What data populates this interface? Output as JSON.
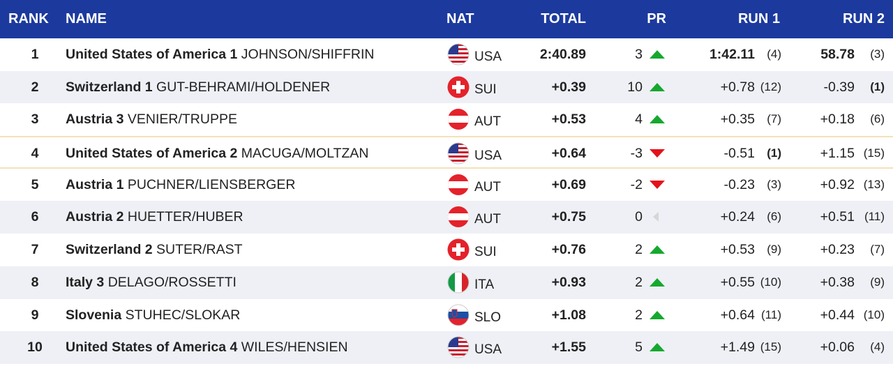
{
  "header": {
    "columns": [
      "RANK",
      "NAME",
      "NAT",
      "TOTAL",
      "PR",
      "RUN 1",
      "RUN 2"
    ]
  },
  "table": {
    "rows": [
      {
        "rank": 1,
        "team": "United States of America 1",
        "athletes": "JOHNSON/SHIFFRIN",
        "nat": "USA",
        "total": "2:40.89",
        "pr": 3,
        "run1": "1:42.11",
        "run1_rank": "(4)",
        "run2": "58.78",
        "run2_rank": "(3)"
      },
      {
        "rank": 2,
        "team": "Switzerland 1",
        "athletes": "GUT-BEHRAMI/HOLDENER",
        "nat": "SUI",
        "total": "+0.39",
        "pr": 10,
        "run1": "+0.78",
        "run1_rank": "(12)",
        "run2": "-0.39",
        "run2_rank": "(1)"
      },
      {
        "rank": 3,
        "team": "Austria 3",
        "athletes": "VENIER/TRUPPE",
        "nat": "AUT",
        "total": "+0.53",
        "pr": 4,
        "run1": "+0.35",
        "run1_rank": "(7)",
        "run2": "+0.18",
        "run2_rank": "(6)"
      },
      {
        "rank": 4,
        "team": "United States of America 2",
        "athletes": "MACUGA/MOLTZAN",
        "nat": "USA",
        "total": "+0.64",
        "pr": -3,
        "run1": "-0.51",
        "run1_rank": "(1)",
        "run2": "+1.15",
        "run2_rank": "(15)"
      },
      {
        "rank": 5,
        "team": "Austria 1",
        "athletes": "PUCHNER/LIENSBERGER",
        "nat": "AUT",
        "total": "+0.69",
        "pr": -2,
        "run1": "-0.23",
        "run1_rank": "(3)",
        "run2": "+0.92",
        "run2_rank": "(13)"
      },
      {
        "rank": 6,
        "team": "Austria 2",
        "athletes": "HUETTER/HUBER",
        "nat": "AUT",
        "total": "+0.75",
        "pr": 0,
        "run1": "+0.24",
        "run1_rank": "(6)",
        "run2": "+0.51",
        "run2_rank": "(11)"
      },
      {
        "rank": 7,
        "team": "Switzerland 2",
        "athletes": "SUTER/RAST",
        "nat": "SUI",
        "total": "+0.76",
        "pr": 2,
        "run1": "+0.53",
        "run1_rank": "(9)",
        "run2": "+0.23",
        "run2_rank": "(7)"
      },
      {
        "rank": 8,
        "team": "Italy 3",
        "athletes": "DELAGO/ROSSETTI",
        "nat": "ITA",
        "total": "+0.93",
        "pr": 2,
        "run1": "+0.55",
        "run1_rank": "(10)",
        "run2": "+0.38",
        "run2_rank": "(9)"
      },
      {
        "rank": 9,
        "team": "Slovenia",
        "athletes": "STUHEC/SLOKAR",
        "nat": "SLO",
        "total": "+1.08",
        "pr": 2,
        "run1": "+0.64",
        "run1_rank": "(11)",
        "run2": "+0.44",
        "run2_rank": "(10)"
      },
      {
        "rank": 10,
        "team": "United States of America 4",
        "athletes": "WILES/HENSIEN",
        "nat": "USA",
        "total": "+1.55",
        "pr": 5,
        "run1": "+1.49",
        "run1_rank": "(15)",
        "run2": "+0.06",
        "run2_rank": "(4)"
      }
    ]
  }
}
